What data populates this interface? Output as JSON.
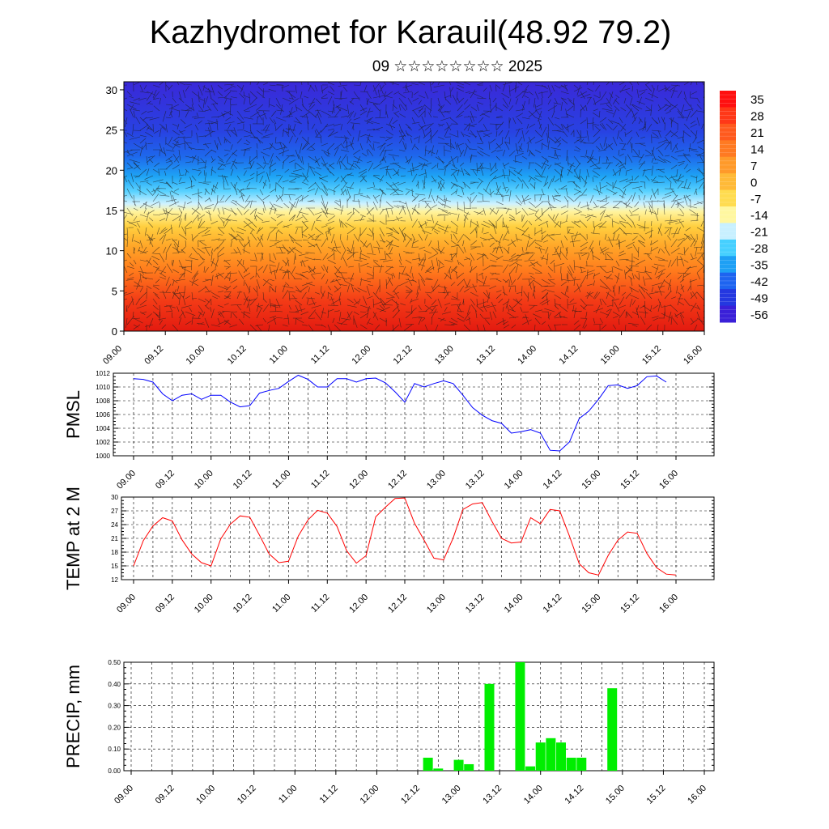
{
  "title": "Kazhydromet for Karauil(48.92 79.2)",
  "subtitle": "09 ☆☆☆☆☆☆☆☆ 2025",
  "chart_data": [
    {
      "type": "heatmap",
      "ylim": [
        0,
        31
      ],
      "yticks": [
        "0",
        "5",
        "10",
        "15",
        "20",
        "25",
        "30"
      ],
      "xticks": [
        "09.00",
        "09.12",
        "10.00",
        "10.12",
        "11.00",
        "11.12",
        "12.00",
        "12.12",
        "13.00",
        "13.12",
        "14.00",
        "14.12",
        "15.00",
        "15.12",
        "16.00"
      ],
      "colorbar": {
        "labels": [
          "35",
          "28",
          "21",
          "14",
          "7",
          "0",
          "-7",
          "-14",
          "-21",
          "-28",
          "-35",
          "-42",
          "-49",
          "-56"
        ],
        "values": [
          35,
          28,
          21,
          14,
          7,
          0,
          -7,
          -14,
          -21,
          -28,
          -35,
          -42,
          -49,
          -56
        ],
        "colors": [
          "#ff1010",
          "#ff3818",
          "#ff5a1e",
          "#ff7a22",
          "#ff9a2a",
          "#ffba38",
          "#ffdc50",
          "#fff7a0",
          "#c8f0ff",
          "#46d0ff",
          "#1ea0f5",
          "#1e64f0",
          "#2438e0",
          "#3a20d8"
        ]
      },
      "overlay": "wind-barbs"
    },
    {
      "type": "line",
      "ylabel": "PMSL",
      "ylim": [
        1000,
        1012
      ],
      "yticks": [
        "1000",
        "1002",
        "1004",
        "1006",
        "1008",
        "1010",
        "1012"
      ],
      "xticks": [
        "09.00",
        "09.12",
        "10.00",
        "10.12",
        "11.00",
        "11.12",
        "12.00",
        "12.12",
        "13.00",
        "13.12",
        "14.00",
        "14.12",
        "15.00",
        "15.12",
        "16.00"
      ],
      "color": "#0000ff",
      "x": [
        0,
        3,
        6,
        9,
        12,
        15,
        18,
        21,
        24,
        27,
        30,
        33,
        36,
        39,
        42,
        45,
        48,
        51,
        54,
        57,
        60,
        63,
        66,
        69,
        72,
        75,
        78,
        81,
        84,
        87,
        90,
        93,
        96,
        99,
        102,
        105,
        108,
        111,
        114,
        117,
        120,
        123,
        126,
        129,
        132,
        135,
        138,
        141,
        144,
        147,
        150,
        153,
        156,
        159,
        162,
        165
      ],
      "values": [
        1011.2,
        1011.1,
        1010.7,
        1009.0,
        1008.0,
        1008.8,
        1009.0,
        1008.2,
        1008.8,
        1008.8,
        1007.8,
        1007.1,
        1007.3,
        1009.1,
        1009.5,
        1009.8,
        1010.8,
        1011.7,
        1011.1,
        1010.0,
        1010.0,
        1011.2,
        1011.2,
        1010.7,
        1011.2,
        1011.3,
        1010.6,
        1009.3,
        1007.8,
        1010.5,
        1010.0,
        1010.5,
        1010.9,
        1010.5,
        1008.8,
        1007.0,
        1005.9,
        1005.1,
        1004.7,
        1003.3,
        1003.5,
        1003.8,
        1003.3,
        1000.8,
        1000.7,
        1002.0,
        1005.4,
        1006.5,
        1008.2,
        1010.2,
        1010.3,
        1009.8,
        1010.2,
        1011.5,
        1011.6,
        1010.7
      ]
    },
    {
      "type": "line",
      "ylabel": "TEMP at 2 M",
      "ylim": [
        12,
        30
      ],
      "yticks": [
        "12",
        "15",
        "18",
        "21",
        "24",
        "27",
        "30"
      ],
      "xticks": [
        "09.00",
        "09.12",
        "10.00",
        "10.12",
        "11.00",
        "11.12",
        "12.00",
        "12.12",
        "13.00",
        "13.12",
        "14.00",
        "14.12",
        "15.00",
        "15.12",
        "16.00"
      ],
      "color": "#ff0000",
      "x": [
        0,
        3,
        6,
        9,
        12,
        15,
        18,
        21,
        24,
        27,
        30,
        33,
        36,
        39,
        42,
        45,
        48,
        51,
        54,
        57,
        60,
        63,
        66,
        69,
        72,
        75,
        78,
        81,
        84,
        87,
        90,
        93,
        96,
        99,
        102,
        105,
        108,
        111,
        114,
        117,
        120,
        123,
        126,
        129,
        132,
        135,
        138,
        141,
        144,
        147,
        150,
        153,
        156,
        159,
        162,
        165,
        168
      ],
      "values": [
        15.0,
        20.5,
        23.7,
        25.5,
        24.8,
        20.7,
        17.6,
        15.7,
        15.0,
        20.9,
        24.1,
        25.9,
        25.6,
        21.7,
        17.6,
        15.7,
        16.0,
        21.5,
        25.0,
        27.1,
        26.5,
        23.6,
        18.3,
        15.6,
        17.2,
        25.7,
        27.8,
        29.7,
        29.8,
        24.3,
        20.6,
        16.7,
        16.3,
        21.1,
        27.3,
        28.5,
        28.8,
        24.7,
        21.0,
        20.0,
        20.2,
        25.5,
        24.2,
        27.3,
        27.0,
        21.5,
        15.5,
        13.5,
        13.0,
        17.3,
        20.6,
        22.4,
        22.1,
        17.7,
        14.6,
        13.2,
        13.0
      ]
    },
    {
      "type": "bar",
      "ylabel": "PRECIP, mm",
      "ylim": [
        0,
        0.5
      ],
      "yticks": [
        "0.00",
        "0.10",
        "0.20",
        "0.30",
        "0.40",
        "0.50"
      ],
      "xticks": [
        "09.00",
        "09.12",
        "10.00",
        "10.12",
        "11.00",
        "11.12",
        "12.00",
        "12.12",
        "13.00",
        "13.12",
        "14.00",
        "14.12",
        "15.00",
        "15.12",
        "16.00"
      ],
      "color": "#00ee00",
      "x": [
        87,
        90,
        96,
        99,
        105,
        114,
        117,
        120,
        123,
        126,
        129,
        132,
        141
      ],
      "values": [
        0.06,
        0.01,
        0.05,
        0.03,
        0.4,
        0.5,
        0.02,
        0.13,
        0.15,
        0.13,
        0.06,
        0.06,
        0.38
      ]
    }
  ]
}
